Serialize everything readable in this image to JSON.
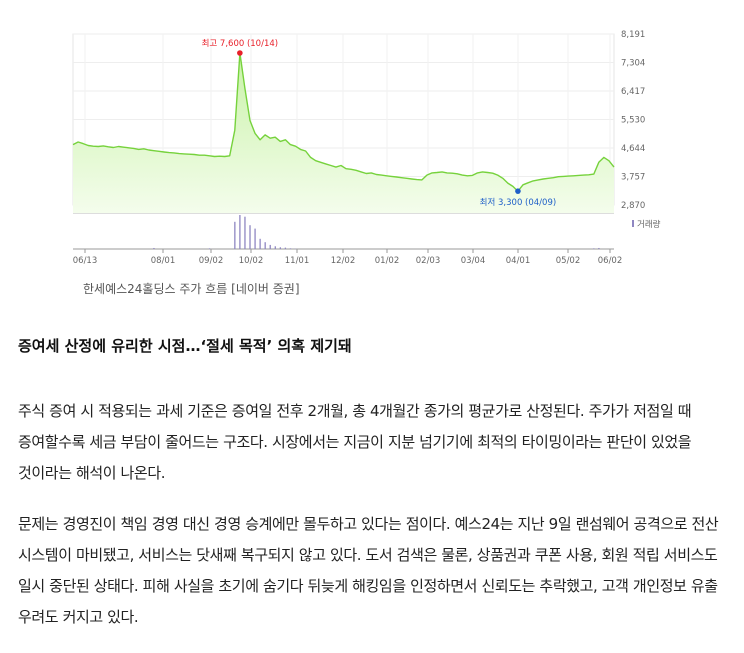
{
  "chart_data": {
    "type": "area",
    "title": "",
    "xlabel": "",
    "ylabel": "",
    "y_ticks": [
      "8,191",
      "7,304",
      "6,417",
      "5,530",
      "4,644",
      "3,757",
      "2,870"
    ],
    "ylim": [
      2870,
      8191
    ],
    "x_ticks": [
      "06/13",
      "08/01",
      "09/02",
      "10/02",
      "11/01",
      "12/02",
      "01/02",
      "02/03",
      "03/04",
      "04/01",
      "05/02",
      "06/02"
    ],
    "series": [
      {
        "values": [
          4750,
          4830,
          4780,
          4720,
          4700,
          4690,
          4710,
          4680,
          4660,
          4690,
          4670,
          4650,
          4630,
          4600,
          4620,
          4580,
          4560,
          4540,
          4520,
          4500,
          4490,
          4470,
          4460,
          4450,
          4440,
          4420,
          4420,
          4400,
          4380,
          4390,
          4380,
          4400,
          5200,
          7600,
          6500,
          5500,
          5100,
          4900,
          5050,
          4950,
          4980,
          4850,
          4900,
          4750,
          4700,
          4600,
          4550,
          4350,
          4250,
          4200,
          4150,
          4100,
          4050,
          4100,
          4000,
          3980,
          3950,
          3900,
          3850,
          3870,
          3820,
          3800,
          3780,
          3760,
          3740,
          3720,
          3700,
          3680,
          3660,
          3650,
          3800,
          3870,
          3880,
          3900,
          3870,
          3860,
          3840,
          3800,
          3780,
          3790,
          3870,
          3900,
          3880,
          3860,
          3800,
          3700,
          3550,
          3450,
          3300,
          3500,
          3560,
          3620,
          3650,
          3680,
          3700,
          3720,
          3750,
          3760,
          3770,
          3780,
          3790,
          3800,
          3810,
          3830,
          4200,
          4350,
          4250,
          4050
        ]
      }
    ],
    "volume": [
      0,
      0,
      0,
      0,
      0,
      0,
      0,
      0,
      0,
      0,
      0,
      0,
      0,
      0,
      0,
      0,
      3,
      0,
      0,
      0,
      0,
      0,
      0,
      0,
      0,
      0,
      0,
      2,
      0,
      0,
      0,
      0,
      80,
      100,
      95,
      70,
      60,
      30,
      20,
      12,
      8,
      5,
      4,
      2,
      1,
      0,
      0,
      0,
      0,
      0,
      0,
      0,
      0,
      0,
      0,
      0,
      0,
      0,
      0,
      0,
      0,
      0,
      0,
      0,
      0,
      0,
      0,
      0,
      0,
      0,
      0,
      0,
      0,
      0,
      0,
      0,
      0,
      0,
      0,
      0,
      0,
      0,
      0,
      0,
      0,
      0,
      0,
      0,
      0,
      0,
      0,
      0,
      0,
      0,
      0,
      0,
      0,
      0,
      0,
      0,
      0,
      0,
      0,
      2,
      3,
      0,
      0,
      0
    ],
    "volume_label": "거래량",
    "max_annotation": "최고 7,600 (10/14)",
    "min_annotation": "최저 3,300 (04/09)",
    "colors": {
      "line": "#76d23c",
      "fill_top": "#c9f2a8",
      "max_dot": "#e8202a",
      "min_dot": "#1e5fc8",
      "volume_bar": "#8f87c2"
    }
  },
  "caption": "한세예스24홀딩스 주가 흐름 [네이버 증권]",
  "article": {
    "heading": "증여세 산정에 유리한 시점…‘절세 목적’ 의혹 제기돼",
    "paragraphs": [
      "주식 증여 시 적용되는 과세 기준은 증여일 전후 2개월, 총 4개월간 종가의 평균가로 산정된다. 주가가 저점일 때 증여할수록 세금 부담이 줄어드는 구조다. 시장에서는 지금이 지분 넘기기에 최적의 타이밍이라는 판단이 있었을 것이라는 해석이 나온다.",
      "문제는 경영진이 책임 경영 대신 경영 승계에만 몰두하고 있다는 점이다. 예스24는 지난 9일 랜섬웨어 공격으로 전산 시스템이 마비됐고, 서비스는 닷새째 복구되지 않고 있다. 도서 검색은 물론, 상품권과 쿠폰 사용, 회원 적립 서비스도 일시 중단된 상태다. 피해 사실을 초기에 숨기다 뒤늦게 해킹임을 인정하면서 신뢰도는 추락했고, 고객 개인정보 유출 우려도 커지고 있다."
    ]
  }
}
